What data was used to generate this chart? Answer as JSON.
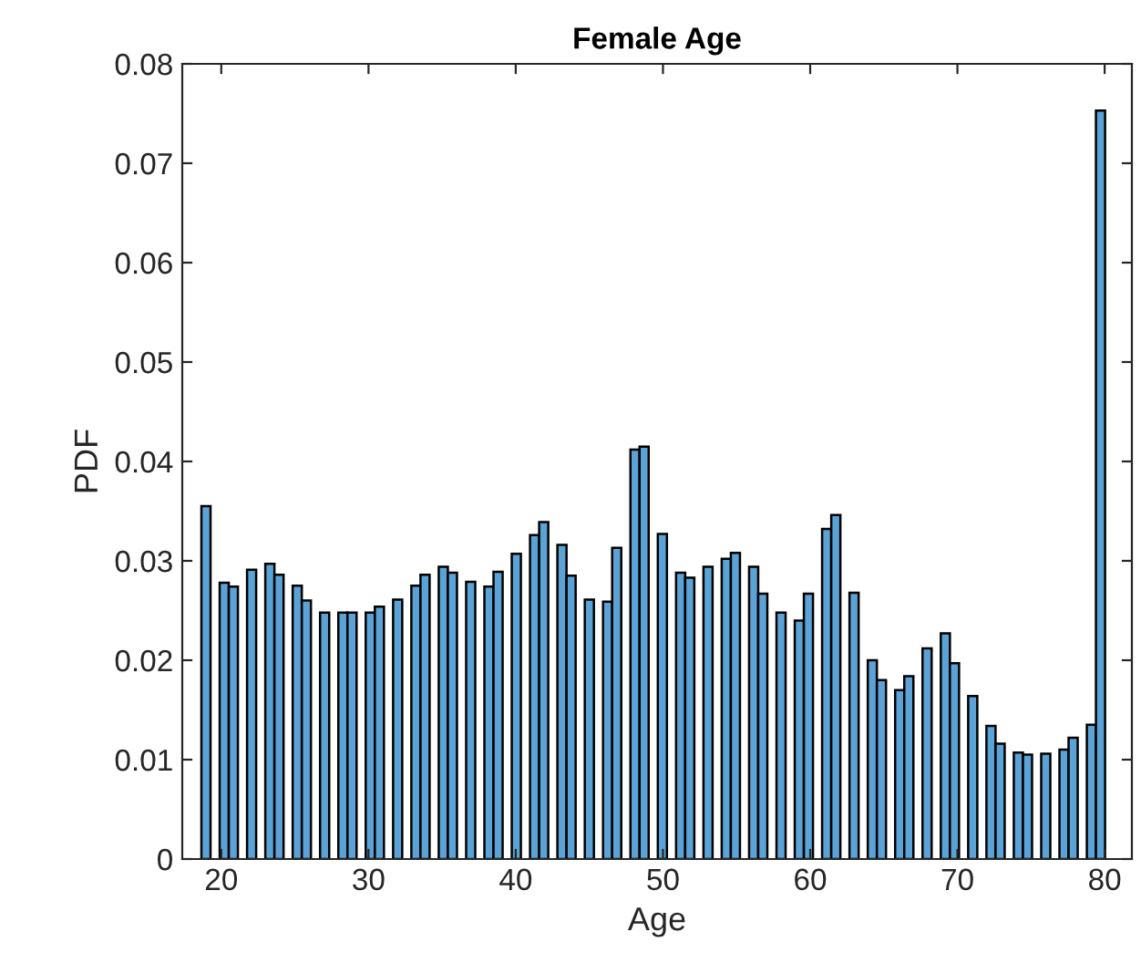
{
  "chart_data": {
    "type": "histogram",
    "title": "Female Age",
    "xlabel": "Age",
    "ylabel": "PDF",
    "bins": [
      18.65,
      19.27,
      19.89,
      20.51,
      21.13,
      21.75,
      22.37,
      22.99,
      23.61,
      24.23,
      24.85,
      25.47,
      26.09,
      26.71,
      27.33,
      27.95,
      28.57,
      29.19,
      29.81,
      30.43,
      31.05,
      31.67,
      32.29,
      32.91,
      33.53,
      34.15,
      34.77,
      35.39,
      36.01,
      36.63,
      37.25,
      37.87,
      38.49,
      39.11,
      39.73,
      40.35,
      40.97,
      41.59,
      42.21,
      42.83,
      43.45,
      44.07,
      44.69,
      45.31,
      45.93,
      46.55,
      47.17,
      47.79,
      48.41,
      49.03,
      49.65,
      50.27,
      50.89,
      51.51,
      52.13,
      52.75,
      53.37,
      53.99,
      54.61,
      55.23,
      55.85,
      56.47,
      57.09,
      57.71,
      58.33,
      58.95,
      59.57,
      60.19,
      60.81,
      61.43,
      62.05,
      62.67,
      63.29,
      63.91,
      64.53,
      65.15,
      65.77,
      66.39,
      67.01,
      67.63,
      68.25,
      68.87,
      69.49,
      70.11,
      70.73,
      71.35,
      71.97,
      72.59,
      73.21,
      73.83,
      74.45,
      75.07,
      75.69,
      76.31,
      76.93,
      77.55,
      78.17,
      78.79,
      79.41,
      80.03
    ],
    "values": [
      0.0355,
      0,
      0.0278,
      0.0274,
      0,
      0.0291,
      0,
      0.0297,
      0.0286,
      0,
      0.0275,
      0.026,
      0,
      0.0248,
      0,
      0.0248,
      0.0248,
      0,
      0.0248,
      0.0254,
      0,
      0.0261,
      0,
      0.0275,
      0.0286,
      0,
      0.0294,
      0.0288,
      0,
      0.0279,
      0,
      0.0274,
      0.0289,
      0,
      0.0307,
      0,
      0.0326,
      0.0339,
      0,
      0.0316,
      0.0285,
      0,
      0.0261,
      0,
      0.0259,
      0.0313,
      0,
      0.0412,
      0.0415,
      0,
      0.0327,
      0,
      0.0288,
      0.0283,
      0,
      0.0294,
      0,
      0.0302,
      0.0308,
      0,
      0.0294,
      0.0267,
      0,
      0.0248,
      0,
      0.024,
      0.0267,
      0,
      0.0332,
      0.0346,
      0,
      0.0268,
      0,
      0.02,
      0.018,
      0,
      0.017,
      0.0184,
      0,
      0.0212,
      0,
      0.0227,
      0.0197,
      0,
      0.0164,
      0,
      0.0134,
      0.0116,
      0,
      0.0107,
      0.0105,
      0,
      0.0106,
      0,
      0.011,
      0.0122,
      0,
      0.0135,
      0.0753
    ],
    "color": "#5ba3d6",
    "xlim": [
      17.35,
      81.85
    ],
    "xticks": [
      20,
      30,
      40,
      50,
      60,
      70,
      80
    ],
    "ylim": [
      0,
      0.08
    ],
    "yticks": [
      0,
      0.01,
      0.02,
      0.03,
      0.04,
      0.05,
      0.06,
      0.07,
      0.08
    ],
    "grid": false
  }
}
